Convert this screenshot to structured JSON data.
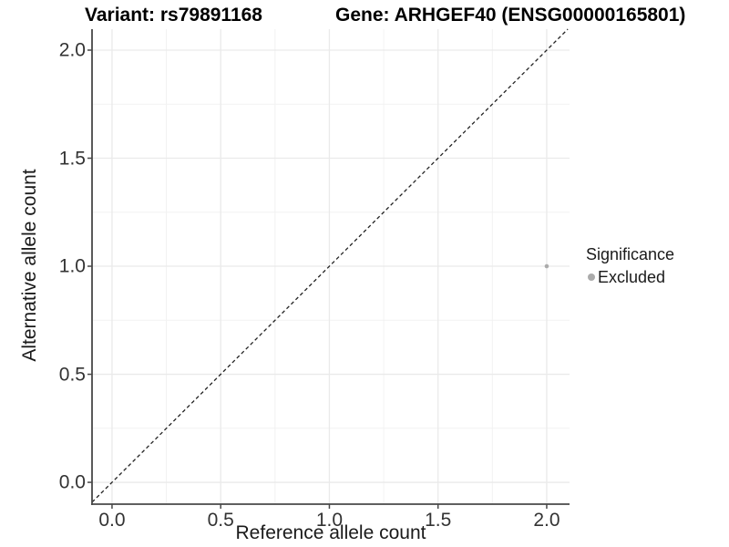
{
  "chart_data": {
    "type": "scatter",
    "title_left": "Variant: rs79891168",
    "title_right": "Gene: ARHGEF40 (ENSG00000165801)",
    "xlabel": "Reference allele count",
    "ylabel": "Alternative allele count",
    "xlim": [
      -0.092,
      2.105
    ],
    "ylim": [
      -0.101,
      2.097
    ],
    "x_ticks": {
      "values": [
        0.0,
        0.5,
        1.0,
        1.5,
        2.0
      ],
      "labels": [
        "0.0",
        "0.5",
        "1.0",
        "1.5",
        "2.0"
      ]
    },
    "y_ticks": {
      "values": [
        0.0,
        0.5,
        1.0,
        1.5,
        2.0
      ],
      "labels": [
        "0.0",
        "0.5",
        "1.0",
        "1.5",
        "2.0"
      ]
    },
    "minor_grid_values": [
      0.25,
      0.75,
      1.25,
      1.75
    ],
    "grid": true,
    "series": [
      {
        "name": "Excluded",
        "color": "#ababab",
        "marker": "circle",
        "points": [
          {
            "x": 2.0,
            "y": 1.0
          }
        ]
      }
    ],
    "reference_line": {
      "kind": "identity",
      "equation": "y = x",
      "style": "dashed",
      "color": "#222222"
    },
    "legend": {
      "position": "right",
      "title": "Significance",
      "entries": [
        {
          "label": "Excluded",
          "color": "#ababab",
          "marker": "circle"
        }
      ]
    }
  },
  "colors": {
    "background": "#ffffff",
    "grid_major": "#eaeaea",
    "grid_minor": "#f2f2f2",
    "axis": "#484848",
    "tick_label": "#333333",
    "title": "#000000",
    "point": "#ababab"
  }
}
